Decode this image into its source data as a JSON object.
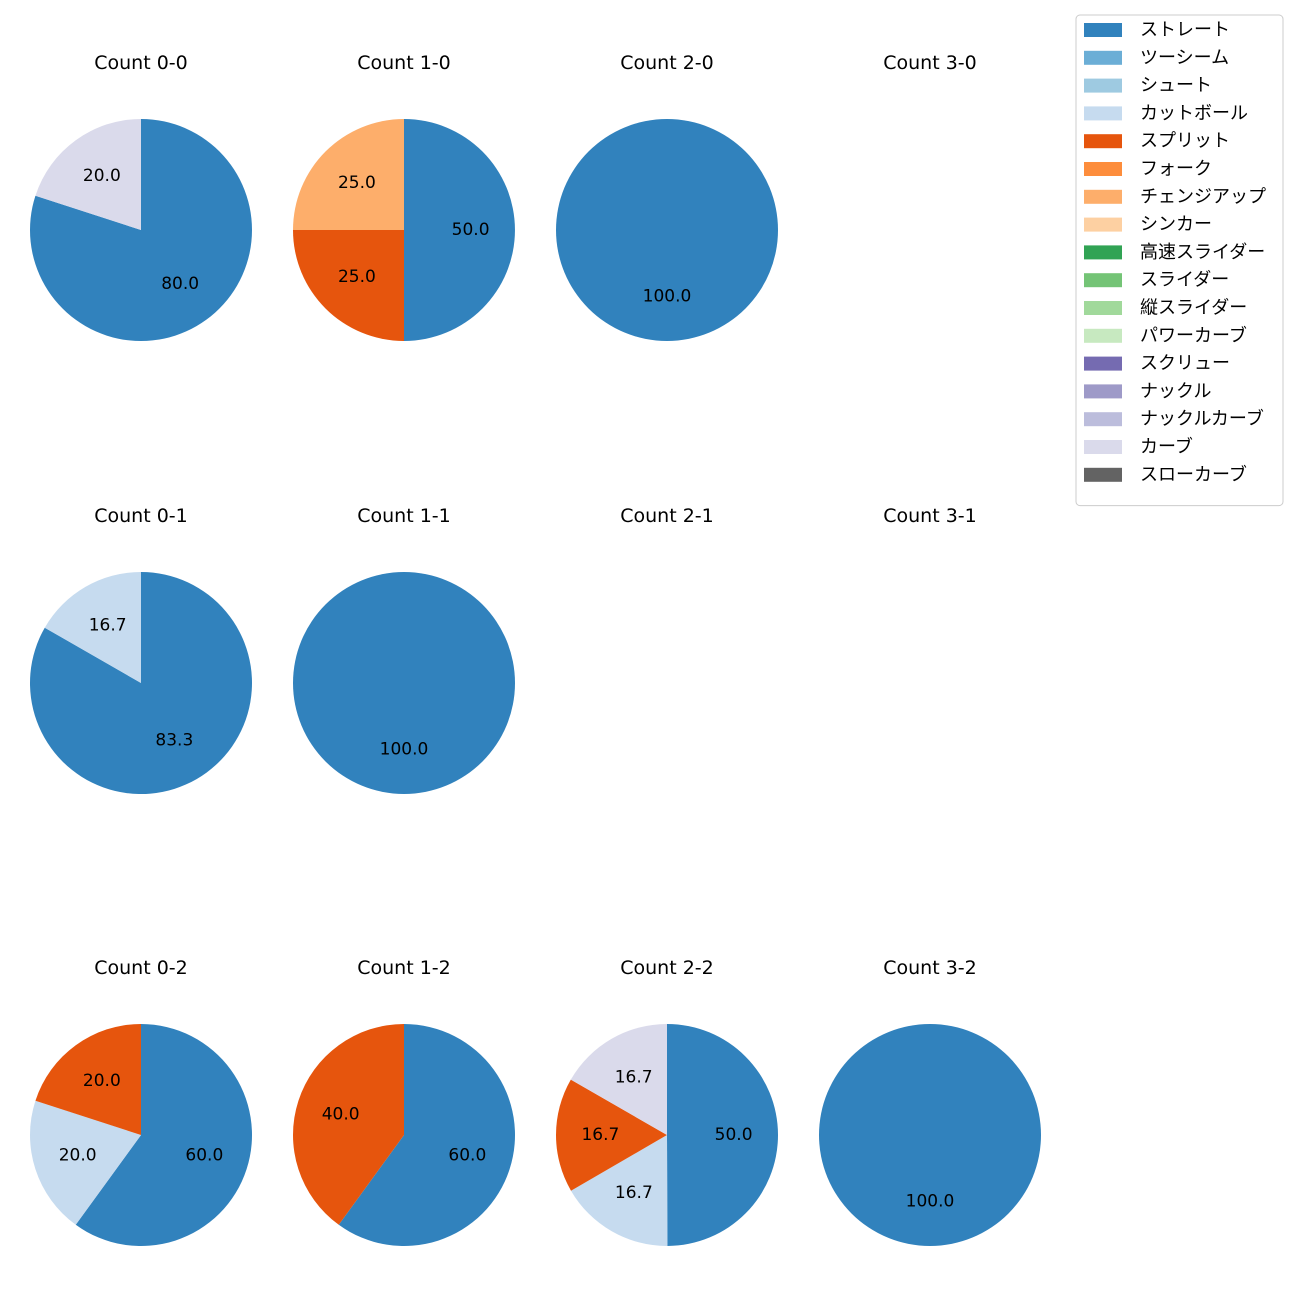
{
  "chart_data": {
    "type": "pie",
    "legend": {
      "placement": "top-right",
      "entries": [
        {
          "name": "ストレート",
          "color": "#3182bd"
        },
        {
          "name": "ツーシーム",
          "color": "#6baed6"
        },
        {
          "name": "シュート",
          "color": "#9ecae1"
        },
        {
          "name": "カットボール",
          "color": "#c6dbef"
        },
        {
          "name": "スプリット",
          "color": "#e6550d"
        },
        {
          "name": "フォーク",
          "color": "#fd8d3c"
        },
        {
          "name": "チェンジアップ",
          "color": "#fdae6b"
        },
        {
          "name": "シンカー",
          "color": "#fdd0a2"
        },
        {
          "name": "高速スライダー",
          "color": "#31a354"
        },
        {
          "name": "スライダー",
          "color": "#74c476"
        },
        {
          "name": "縦スライダー",
          "color": "#a1d99b"
        },
        {
          "name": "パワーカーブ",
          "color": "#c7e9c0"
        },
        {
          "name": "スクリュー",
          "color": "#756bb1"
        },
        {
          "name": "ナックル",
          "color": "#9e9ac8"
        },
        {
          "name": "ナックルカーブ",
          "color": "#bcbddc"
        },
        {
          "name": "カーブ",
          "color": "#dadaeb"
        },
        {
          "name": "スローカーブ",
          "color": "#636363"
        }
      ]
    },
    "panels": [
      {
        "title": "Count 0-0",
        "slices": [
          {
            "pitch": "ストレート",
            "value": 80.0,
            "label": "80.0"
          },
          {
            "pitch": "カーブ",
            "value": 20.0,
            "label": "20.0"
          }
        ]
      },
      {
        "title": "Count 1-0",
        "slices": [
          {
            "pitch": "ストレート",
            "value": 50.0,
            "label": "50.0"
          },
          {
            "pitch": "スプリット",
            "value": 25.0,
            "label": "25.0"
          },
          {
            "pitch": "チェンジアップ",
            "value": 25.0,
            "label": "25.0"
          }
        ]
      },
      {
        "title": "Count 2-0",
        "slices": [
          {
            "pitch": "ストレート",
            "value": 100.0,
            "label": "100.0"
          }
        ]
      },
      {
        "title": "Count 3-0",
        "slices": []
      },
      {
        "title": "Count 0-1",
        "slices": [
          {
            "pitch": "ストレート",
            "value": 83.3,
            "label": "83.3"
          },
          {
            "pitch": "カットボール",
            "value": 16.7,
            "label": "16.7"
          }
        ]
      },
      {
        "title": "Count 1-1",
        "slices": [
          {
            "pitch": "ストレート",
            "value": 100.0,
            "label": "100.0"
          }
        ]
      },
      {
        "title": "Count 2-1",
        "slices": []
      },
      {
        "title": "Count 3-1",
        "slices": []
      },
      {
        "title": "Count 0-2",
        "slices": [
          {
            "pitch": "ストレート",
            "value": 60.0,
            "label": "60.0"
          },
          {
            "pitch": "カットボール",
            "value": 20.0,
            "label": "20.0"
          },
          {
            "pitch": "スプリット",
            "value": 20.0,
            "label": "20.0"
          }
        ]
      },
      {
        "title": "Count 1-2",
        "slices": [
          {
            "pitch": "ストレート",
            "value": 60.0,
            "label": "60.0"
          },
          {
            "pitch": "スプリット",
            "value": 40.0,
            "label": "40.0"
          }
        ]
      },
      {
        "title": "Count 2-2",
        "slices": [
          {
            "pitch": "ストレート",
            "value": 50.0,
            "label": "50.0"
          },
          {
            "pitch": "カットボール",
            "value": 16.7,
            "label": "16.7"
          },
          {
            "pitch": "スプリット",
            "value": 16.7,
            "label": "16.7"
          },
          {
            "pitch": "カーブ",
            "value": 16.7,
            "label": "16.7"
          }
        ]
      },
      {
        "title": "Count 3-2",
        "slices": [
          {
            "pitch": "ストレート",
            "value": 100.0,
            "label": "100.0"
          }
        ]
      }
    ]
  }
}
